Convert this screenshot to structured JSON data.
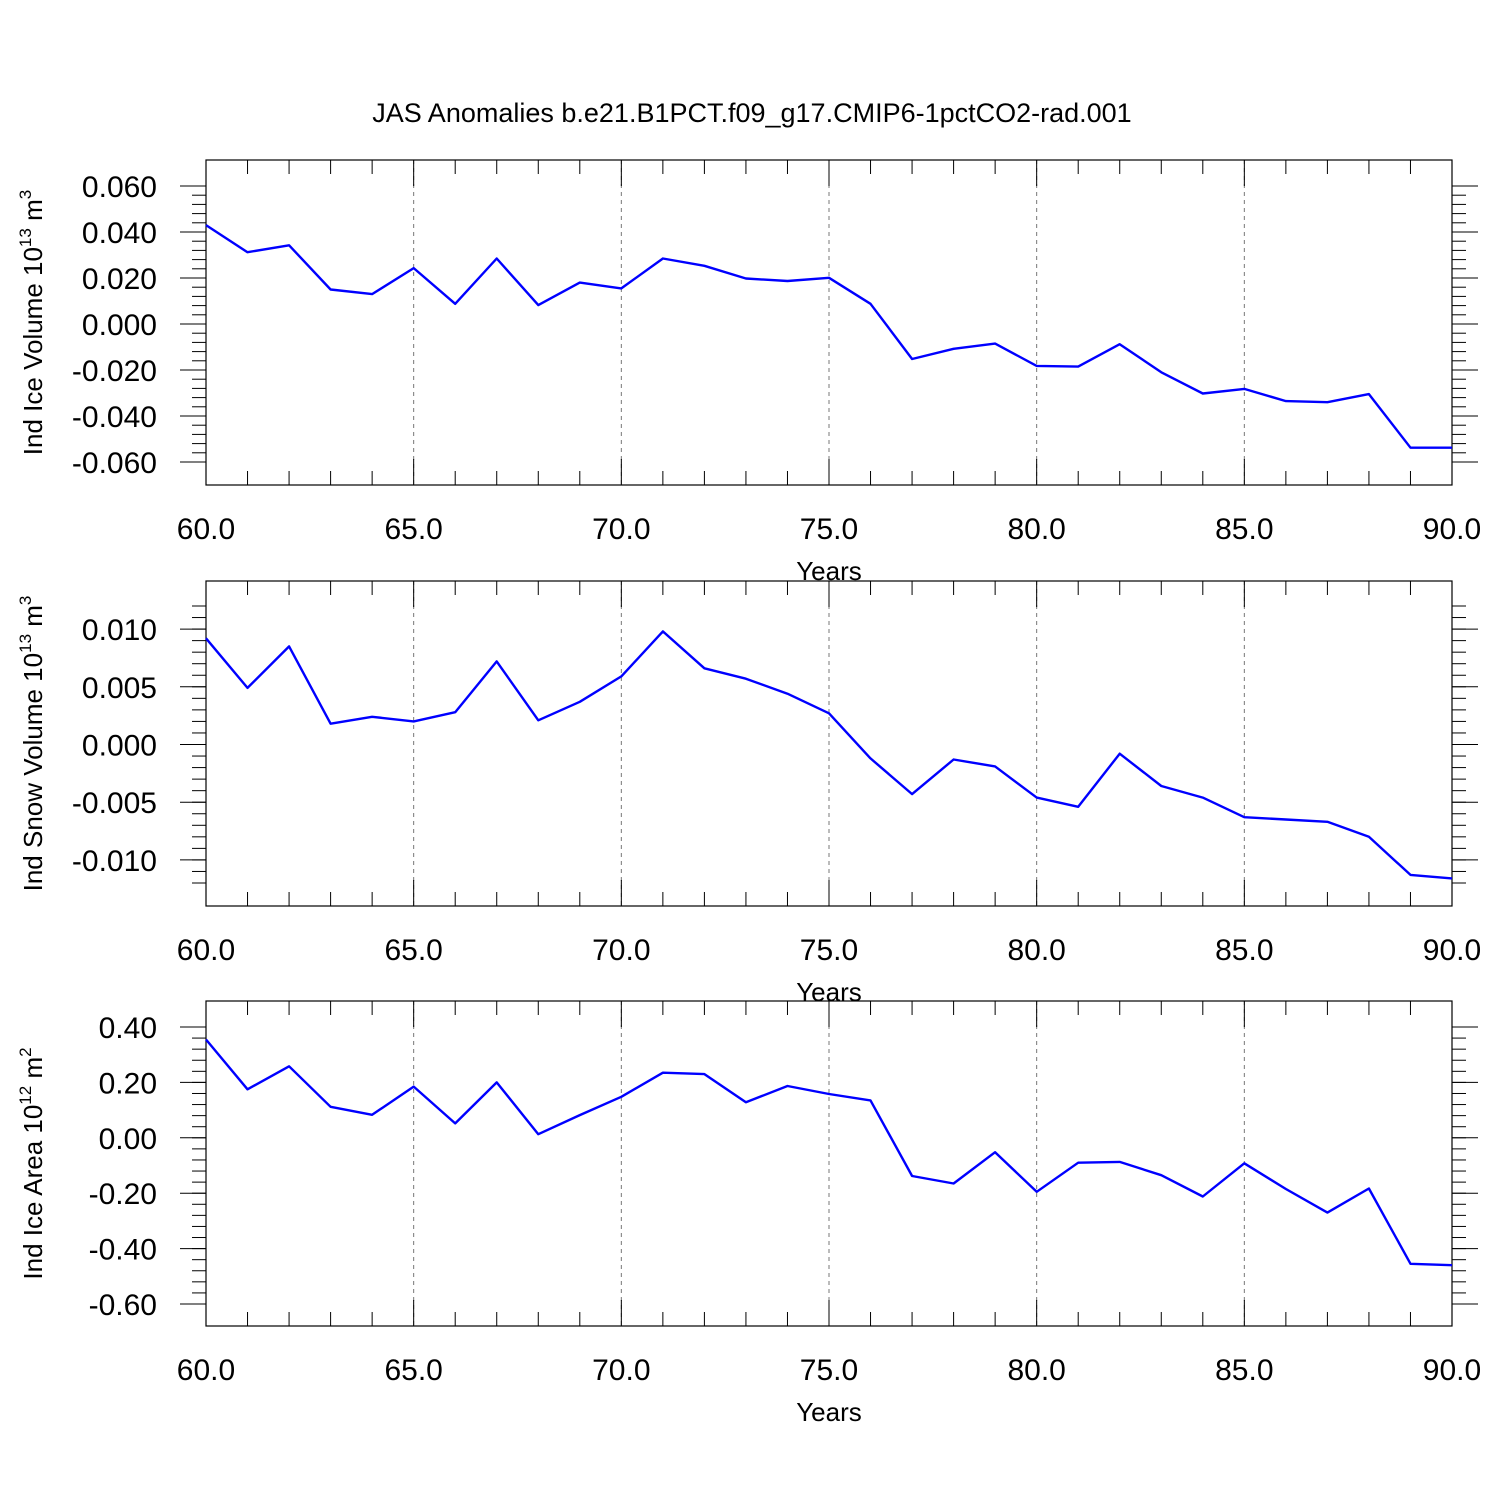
{
  "title": "JAS Anomalies b.e21.B1PCT.f09_g17.CMIP6-1pctCO2-rad.001",
  "line_color": "#0000ff",
  "chart_data": [
    {
      "type": "line",
      "xlabel": "Years",
      "ylabel_main": "Ind Ice Volume 10",
      "ylabel_exp": "13",
      "ylabel_unit": " m",
      "ylabel_unit_exp": "3",
      "xlim": [
        60,
        90
      ],
      "ylim": [
        -0.06,
        0.06
      ],
      "x_ticks": [
        "60.0",
        "65.0",
        "70.0",
        "75.0",
        "80.0",
        "85.0",
        "90.0"
      ],
      "y_ticks": [
        "0.060",
        "0.040",
        "0.020",
        "0.000",
        "-0.020",
        "-0.040",
        "-0.060"
      ],
      "x": [
        60,
        61,
        62,
        63,
        64,
        65,
        66,
        67,
        68,
        69,
        70,
        71,
        72,
        73,
        74,
        75,
        76,
        77,
        78,
        79,
        80,
        81,
        82,
        83,
        84,
        85,
        86,
        87,
        88,
        89,
        90
      ],
      "values": [
        0.043,
        0.0312,
        0.0342,
        0.015,
        0.013,
        0.0243,
        0.0088,
        0.0285,
        0.0082,
        0.018,
        0.0155,
        0.0285,
        0.0253,
        0.0198,
        0.0187,
        0.0201,
        0.0088,
        -0.0152,
        -0.0108,
        -0.0085,
        -0.0182,
        -0.0185,
        -0.0088,
        -0.021,
        -0.0302,
        -0.0282,
        -0.0335,
        -0.034,
        -0.0305,
        -0.0538,
        -0.0538
      ]
    },
    {
      "type": "line",
      "xlabel": "Years",
      "ylabel_main": "Ind Snow Volume 10",
      "ylabel_exp": "13",
      "ylabel_unit": " m",
      "ylabel_unit_exp": "3",
      "xlim": [
        60,
        90
      ],
      "ylim": [
        -0.012,
        0.012
      ],
      "x_ticks": [
        "60.0",
        "65.0",
        "70.0",
        "75.0",
        "80.0",
        "85.0",
        "90.0"
      ],
      "y_ticks": [
        "0.010",
        "0.005",
        "0.000",
        "-0.005",
        "-0.010"
      ],
      "x": [
        60,
        61,
        62,
        63,
        64,
        65,
        66,
        67,
        68,
        69,
        70,
        71,
        72,
        73,
        74,
        75,
        76,
        77,
        78,
        79,
        80,
        81,
        82,
        83,
        84,
        85,
        86,
        87,
        88,
        89,
        90
      ],
      "values": [
        0.0092,
        0.0049,
        0.0085,
        0.0018,
        0.0024,
        0.002,
        0.0028,
        0.0072,
        0.0021,
        0.0037,
        0.0059,
        0.0098,
        0.0066,
        0.0057,
        0.0044,
        0.0027,
        -0.0012,
        -0.0043,
        -0.0013,
        -0.0019,
        -0.0046,
        -0.0054,
        -0.0008,
        -0.0036,
        -0.0046,
        -0.0063,
        -0.0065,
        -0.0067,
        -0.008,
        -0.0113,
        -0.0116
      ]
    },
    {
      "type": "line",
      "xlabel": "Years",
      "ylabel_main": "Ind Ice Area 10",
      "ylabel_exp": "12",
      "ylabel_unit": " m",
      "ylabel_unit_exp": "2",
      "xlim": [
        60,
        90
      ],
      "ylim": [
        -0.6,
        0.4
      ],
      "x_ticks": [
        "60.0",
        "65.0",
        "70.0",
        "75.0",
        "80.0",
        "85.0",
        "90.0"
      ],
      "y_ticks": [
        "0.40",
        "0.20",
        "0.00",
        "-0.20",
        "-0.40",
        "-0.60"
      ],
      "x": [
        60,
        61,
        62,
        63,
        64,
        65,
        66,
        67,
        68,
        69,
        70,
        71,
        72,
        73,
        74,
        75,
        76,
        77,
        78,
        79,
        80,
        81,
        82,
        83,
        84,
        85,
        86,
        87,
        88,
        89,
        90
      ],
      "values": [
        0.355,
        0.175,
        0.258,
        0.112,
        0.083,
        0.185,
        0.052,
        0.2,
        0.013,
        0.082,
        0.148,
        0.235,
        0.23,
        0.128,
        0.187,
        0.158,
        0.135,
        -0.138,
        -0.165,
        -0.052,
        -0.195,
        -0.09,
        -0.087,
        -0.135,
        -0.212,
        -0.092,
        -0.185,
        -0.27,
        -0.183,
        -0.455,
        -0.46
      ]
    }
  ]
}
